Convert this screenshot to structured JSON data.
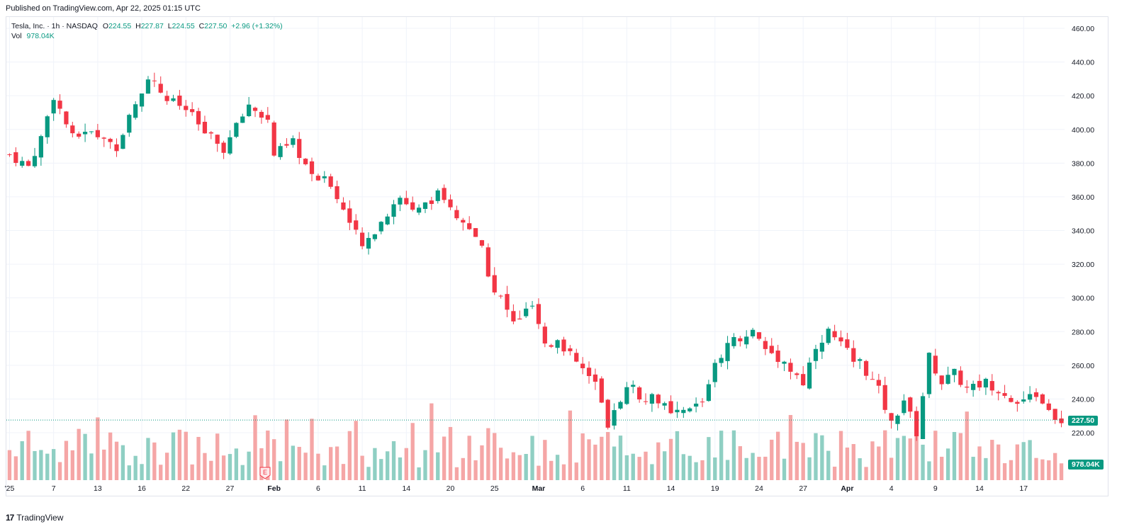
{
  "header": {
    "published": "Published on TradingView.com, Apr 22, 2025 01:15 UTC"
  },
  "legend": {
    "symbol": "Tesla, Inc. · 1h · NASDAQ",
    "o_label": "O",
    "o_value": "224.55",
    "h_label": "H",
    "h_value": "227.87",
    "l_label": "L",
    "l_value": "224.55",
    "c_label": "C",
    "c_value": "227.50",
    "change": "+2.96 (+1.32%)",
    "vol_label": "Vol",
    "vol_value": "978.04K"
  },
  "price_tags": {
    "last_price": "227.50",
    "last_volume": "978.04K"
  },
  "earnings_marker": "E",
  "footer": {
    "brand": "TradingView",
    "logo": "17"
  },
  "colors": {
    "up": "#089981",
    "down": "#f23645",
    "up_vol": "#8fcfc3",
    "down_vol": "#f5a6a6",
    "grid": "#f0f3fa"
  },
  "chart_data": {
    "type": "candlestick",
    "title": "Tesla, Inc. · 1h · NASDAQ",
    "y_ticks": [
      220,
      240,
      260,
      280,
      300,
      320,
      340,
      360,
      380,
      400,
      420,
      440,
      460
    ],
    "y_tick_labels": [
      "220.00",
      "240.00",
      "260.00",
      "280.00",
      "300.00",
      "320.00",
      "340.00",
      "360.00",
      "380.00",
      "400.00",
      "420.00",
      "440.00",
      "460.00"
    ],
    "ylim": [
      210,
      465
    ],
    "x_tick_labels": [
      "'25",
      "7",
      "13",
      "16",
      "22",
      "27",
      "Feb",
      "6",
      "11",
      "14",
      "20",
      "25",
      "Mar",
      "6",
      "11",
      "14",
      "19",
      "24",
      "27",
      "Apr",
      "4",
      "9",
      "14",
      "17"
    ],
    "x_tick_index": [
      0,
      7,
      14,
      21,
      28,
      35,
      42,
      49,
      56,
      63,
      70,
      77,
      84,
      91,
      98,
      105,
      112,
      119,
      126,
      133,
      140,
      147,
      154,
      161
    ],
    "x_tick_bold": [
      "Feb",
      "Mar",
      "Apr"
    ],
    "series": [
      {
        "name": "Close",
        "anchor_index": [
          0,
          3,
          5,
          7,
          10,
          13,
          17,
          20,
          22,
          25,
          28,
          31,
          34,
          38,
          41,
          42,
          45,
          48,
          51,
          54,
          56,
          59,
          62,
          65,
          68,
          70,
          73,
          75,
          77,
          78,
          80,
          83,
          85,
          87,
          90,
          93,
          95,
          98,
          100,
          103,
          105,
          107,
          110,
          112,
          115,
          118,
          120,
          123,
          126,
          128,
          130,
          133,
          135,
          138,
          140,
          142,
          144,
          146,
          148,
          150,
          152,
          155,
          158,
          160,
          162,
          164,
          166,
          167
        ],
        "anchor_values": [
          385,
          378,
          395,
          420,
          395,
          398,
          390,
          415,
          432,
          418,
          412,
          398,
          388,
          415,
          405,
          385,
          392,
          372,
          368,
          345,
          330,
          345,
          358,
          352,
          362,
          352,
          340,
          328,
          302,
          300,
          285,
          295,
          270,
          275,
          262,
          248,
          222,
          250,
          242,
          240,
          230,
          232,
          238,
          262,
          275,
          280,
          270,
          262,
          250,
          272,
          280,
          268,
          262,
          245,
          225,
          240,
          220,
          265,
          250,
          255,
          246,
          250,
          244,
          237,
          240,
          240,
          225,
          227.5
        ],
        "last_close": 227.5
      }
    ],
    "volume": {
      "max_visible": 330000,
      "last": 978040
    },
    "x_count": 168
  }
}
